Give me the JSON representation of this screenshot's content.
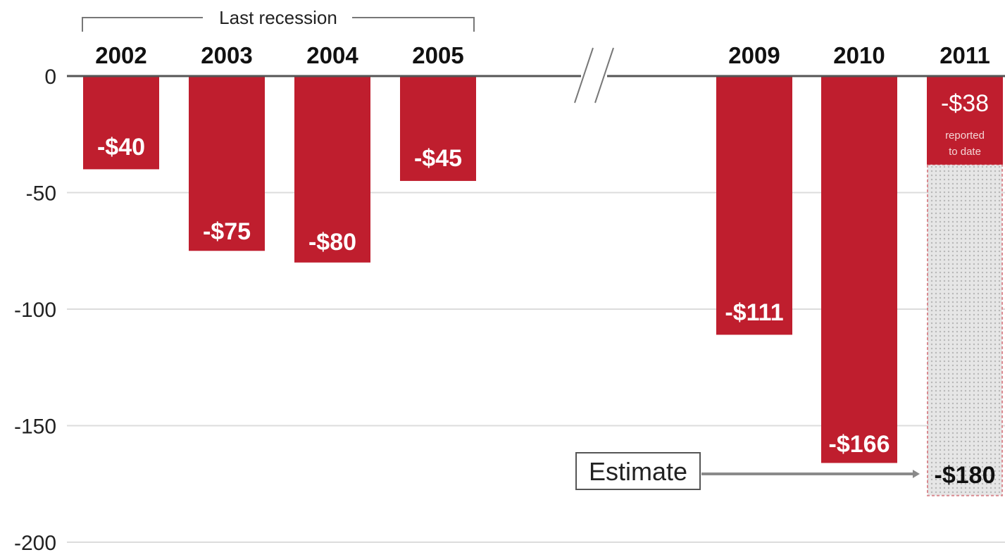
{
  "colors": {
    "bar": "#bf1e2e",
    "grid": "#dcdcdc",
    "axis": "#555555",
    "estimate_border": "#d98a90"
  },
  "chart_data": {
    "type": "bar",
    "categories": [
      "2002",
      "2003",
      "2004",
      "2005",
      "2009",
      "2010",
      "2011"
    ],
    "values": [
      -40,
      -75,
      -80,
      -45,
      -111,
      -166,
      -38
    ],
    "value_labels": [
      "-$40",
      "-$75",
      "-$80",
      "-$45",
      "-$111",
      "-$166",
      "-$38"
    ],
    "ylim": [
      -200,
      0
    ],
    "yticks": [
      "0",
      "-50",
      "-100",
      "-150",
      "-200"
    ],
    "grid": true,
    "annotations": {
      "recession_label": "Last recession",
      "reported_note_line1": "reported",
      "reported_note_line2": "to date",
      "estimate_label": "Estimate",
      "estimate_value": -180,
      "estimate_value_label": "-$180"
    }
  }
}
